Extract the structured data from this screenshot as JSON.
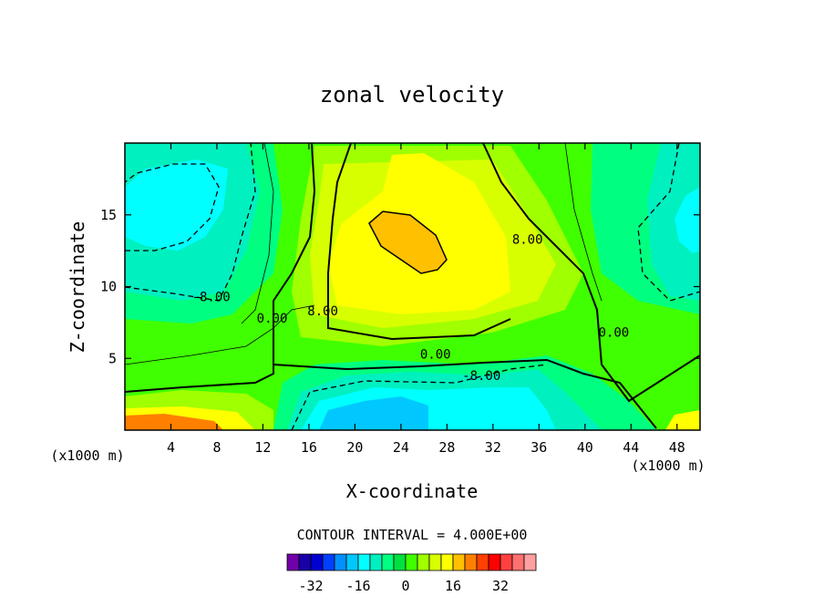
{
  "chart_data": {
    "type": "heatmap",
    "subtype": "filled-contour",
    "title": "zonal velocity",
    "xlabel": "X-coordinate",
    "ylabel": "Z-coordinate",
    "x_units": "(x1000 m)",
    "x_units_right": "(x1000 m)",
    "xlim": [
      0,
      50
    ],
    "ylim": [
      0,
      20
    ],
    "xticks": [
      4,
      8,
      12,
      16,
      20,
      24,
      28,
      32,
      36,
      40,
      44,
      48
    ],
    "yticks": [
      5,
      10,
      15
    ],
    "contour_interval_text": "CONTOUR INTERVAL = 4.000E+00",
    "colorbar": {
      "colors": [
        "#7000a8",
        "#1800a8",
        "#0000d0",
        "#0040ff",
        "#0090ff",
        "#00c8ff",
        "#00ffff",
        "#00f0c0",
        "#00ff80",
        "#00e040",
        "#40ff00",
        "#a0ff00",
        "#d8ff00",
        "#ffff00",
        "#ffc000",
        "#ff8000",
        "#ff4000",
        "#ff0000",
        "#ff4040",
        "#ff7070",
        "#ffa0a0"
      ],
      "tick_labels": [
        "-32",
        "-16",
        "0",
        "16",
        "32"
      ],
      "tick_values": [
        -32,
        -16,
        0,
        16,
        32
      ]
    },
    "field_features": [
      {
        "kind": "max",
        "x": 25,
        "z": 13,
        "value": 20
      },
      {
        "kind": "min",
        "x": 24,
        "z": 1.5,
        "value": -16
      },
      {
        "kind": "min",
        "x": 4,
        "z": 16,
        "value": -16
      },
      {
        "kind": "min",
        "x": 48,
        "z": 14,
        "value": -12
      },
      {
        "kind": "max",
        "x": 2,
        "z": 0.3,
        "value": 24
      }
    ],
    "contour_labels": [
      {
        "text": "-8.00",
        "x": 7.5,
        "z": 9
      },
      {
        "text": "0.00",
        "x": 12.8,
        "z": 7.5
      },
      {
        "text": "8.00",
        "x": 17.2,
        "z": 8
      },
      {
        "text": "0.00",
        "x": 27,
        "z": 5
      },
      {
        "text": "-8.00",
        "x": 31,
        "z": 3.5
      },
      {
        "text": "8.00",
        "x": 35,
        "z": 13
      },
      {
        "text": "0.00",
        "x": 42.5,
        "z": 6.5
      }
    ]
  }
}
